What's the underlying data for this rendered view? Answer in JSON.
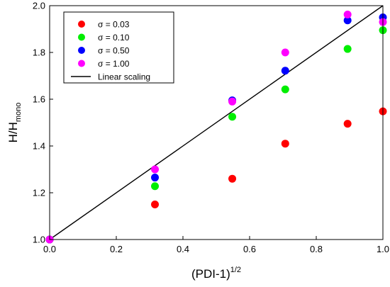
{
  "chart_data": {
    "type": "scatter",
    "xlabel": {
      "base": "(PDI-1)",
      "sup": "1/2"
    },
    "ylabel": {
      "base": "H/H",
      "sub": "mono"
    },
    "xlim": [
      0,
      1
    ],
    "ylim": [
      1,
      2
    ],
    "xticks": [
      "0.0",
      "0.2",
      "0.4",
      "0.6",
      "0.8",
      "1.0"
    ],
    "yticks": [
      "1.0",
      "1.2",
      "1.4",
      "1.6",
      "1.8",
      "2.0"
    ],
    "grid": false,
    "legend_position": "top-left",
    "series": [
      {
        "name": "σ = 0.03",
        "color": "#ff0000",
        "x": [
          0,
          0.316,
          0.548,
          0.707,
          0.894,
          1.0
        ],
        "y": [
          1.0,
          1.15,
          1.26,
          1.41,
          1.495,
          1.548
        ]
      },
      {
        "name": "σ = 0.10",
        "color": "#00ee00",
        "x": [
          0,
          0.316,
          0.548,
          0.707,
          0.894,
          1.0
        ],
        "y": [
          1.0,
          1.228,
          1.525,
          1.642,
          1.815,
          1.895
        ]
      },
      {
        "name": "σ = 0.50",
        "color": "#0000ff",
        "x": [
          0,
          0.316,
          0.548,
          0.707,
          0.894,
          1.0
        ],
        "y": [
          1.0,
          1.265,
          1.595,
          1.722,
          1.937,
          1.95
        ]
      },
      {
        "name": "σ = 1.00",
        "color": "#ff00ff",
        "x": [
          0,
          0.316,
          0.548,
          0.707,
          0.894,
          1.0
        ],
        "y": [
          1.0,
          1.3,
          1.59,
          1.8,
          1.962,
          1.93
        ]
      }
    ],
    "reference_line": {
      "name": "Linear scaling",
      "color": "#000000",
      "x": [
        0,
        1
      ],
      "y": [
        1,
        2
      ]
    }
  }
}
